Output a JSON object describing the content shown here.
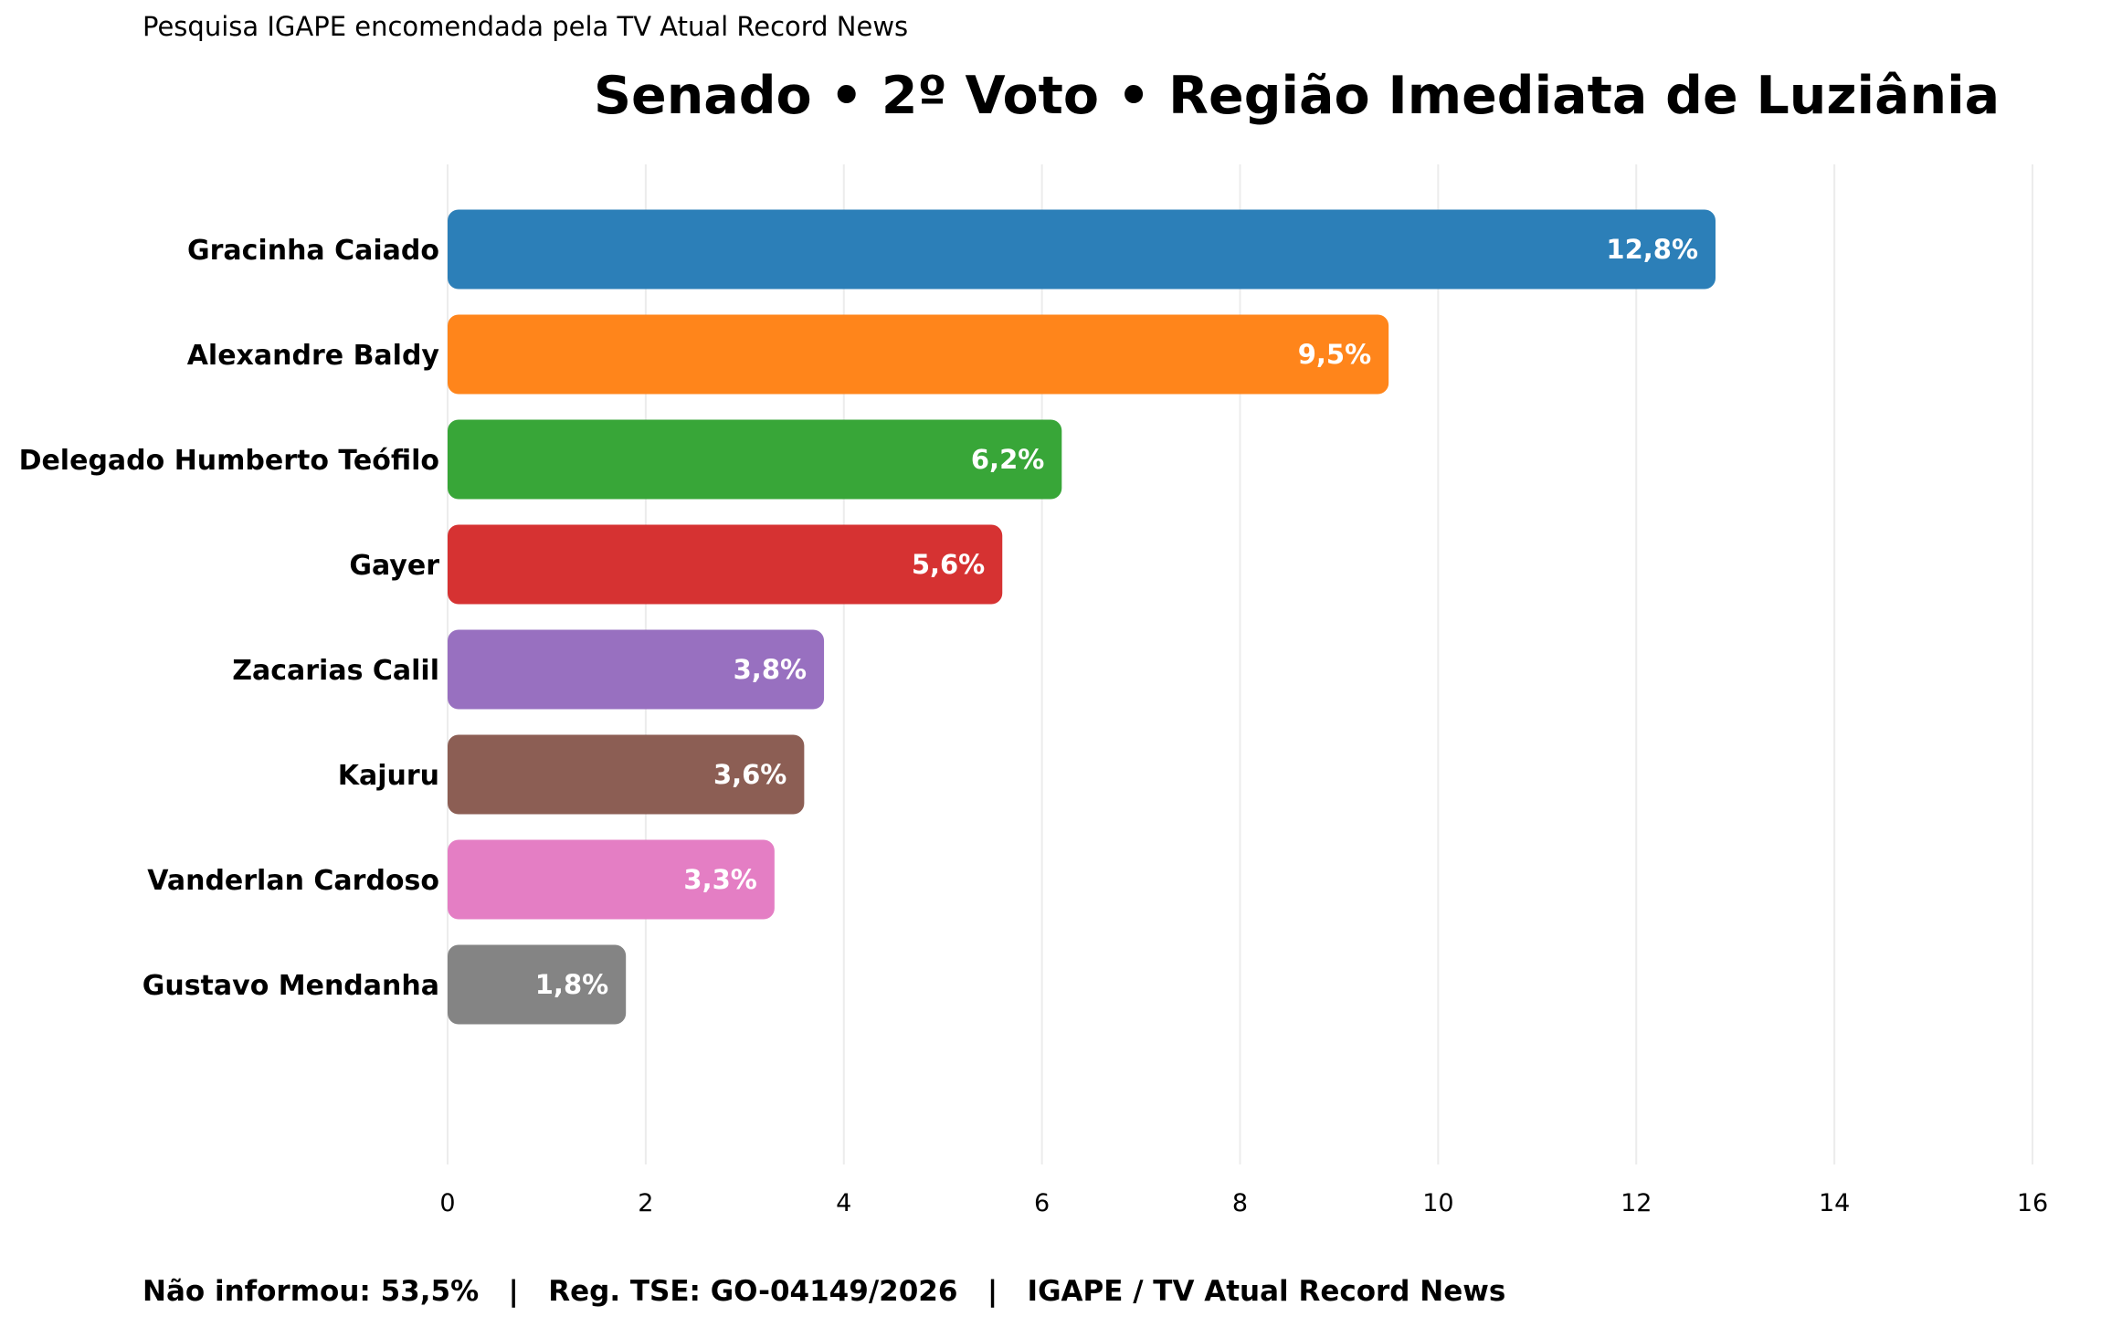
{
  "header": {
    "subtitle": "Pesquisa IGAPE encomendada pela TV Atual Record News",
    "title": "Senado • 2º Voto • Região Imediata de Luziânia"
  },
  "footer": {
    "not_informed": "Não informou: 53,5%",
    "separator": "|",
    "registration": "Reg. TSE: GO-04149/2026",
    "source": "IGAPE / TV Atual Record News"
  },
  "chart_data": {
    "type": "bar",
    "orientation": "horizontal",
    "title": "Senado • 2º Voto • Região Imediata de Luziânia",
    "subtitle": "Pesquisa IGAPE encomendada pela TV Atual Record News",
    "xlabel": "",
    "ylabel": "",
    "xlim": [
      0,
      16
    ],
    "xticks": [
      0,
      2,
      4,
      6,
      8,
      10,
      12,
      14,
      16
    ],
    "grid": "vertical",
    "categories": [
      "Gracinha Caiado",
      "Alexandre Baldy",
      "Delegado Humberto Teófilo",
      "Gayer",
      "Zacarias Calil",
      "Kajuru",
      "Vanderlan Cardoso",
      "Gustavo Mendanha"
    ],
    "values": [
      12.8,
      9.5,
      6.2,
      5.6,
      3.8,
      3.6,
      3.3,
      1.8
    ],
    "value_labels": [
      "12,8%",
      "9,5%",
      "6,2%",
      "5,6%",
      "3,8%",
      "3,6%",
      "3,3%",
      "1,8%"
    ],
    "colors": [
      "#2c7fb8",
      "#ff851b",
      "#38a638",
      "#d63232",
      "#9870c0",
      "#8c5e54",
      "#e47ec4",
      "#848484"
    ],
    "grid_color": "#ececec"
  }
}
